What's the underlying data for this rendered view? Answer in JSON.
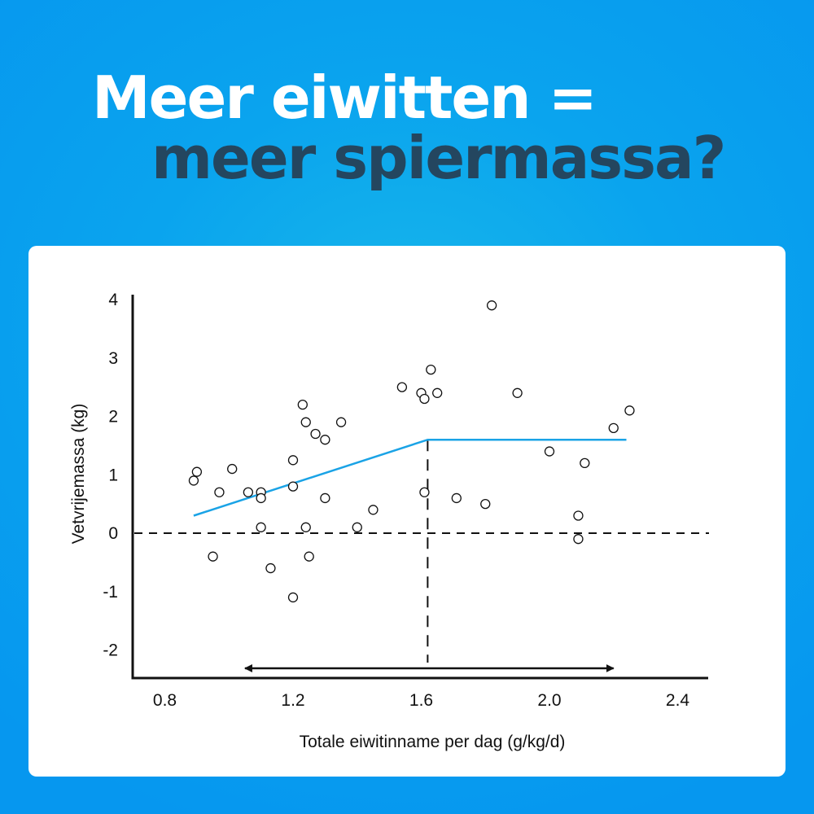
{
  "headline": {
    "line1": "Meer eiwitten =",
    "line2": "meer spiermassa?"
  },
  "colors": {
    "background": "#0697ef",
    "headline_line1": "#ffffff",
    "headline_line2": "#24465f",
    "trend_line": "#1aa3e6",
    "axes": "#111111"
  },
  "chart_data": {
    "type": "scatter",
    "xlabel": "Totale eiwitinname per dag (g/kg/d)",
    "ylabel": "Vetvrijemassa (kg)",
    "xlim": [
      0.7,
      2.5
    ],
    "ylim": [
      -2.5,
      4
    ],
    "x_ticks": [
      0.8,
      1.2,
      1.6,
      2.0,
      2.4
    ],
    "x_tick_labels": [
      "0.8",
      "1.2",
      "1.6",
      "2.0",
      "2.4"
    ],
    "y_ticks": [
      4,
      3,
      2,
      1,
      0,
      -1,
      -2
    ],
    "y_tick_labels": [
      "4",
      "3",
      "2",
      "1",
      "0",
      "-1",
      "-2"
    ],
    "grid": false,
    "points": [
      {
        "x": 0.89,
        "y": 0.9
      },
      {
        "x": 0.9,
        "y": 1.05
      },
      {
        "x": 0.95,
        "y": -0.4
      },
      {
        "x": 0.97,
        "y": 0.7
      },
      {
        "x": 1.01,
        "y": 1.1
      },
      {
        "x": 1.06,
        "y": 0.7
      },
      {
        "x": 1.1,
        "y": 0.7
      },
      {
        "x": 1.1,
        "y": 0.6
      },
      {
        "x": 1.1,
        "y": 0.1
      },
      {
        "x": 1.13,
        "y": -0.6
      },
      {
        "x": 1.2,
        "y": 1.25
      },
      {
        "x": 1.2,
        "y": 0.8
      },
      {
        "x": 1.2,
        "y": -1.1
      },
      {
        "x": 1.23,
        "y": 2.2
      },
      {
        "x": 1.24,
        "y": 1.9
      },
      {
        "x": 1.24,
        "y": 0.1
      },
      {
        "x": 1.25,
        "y": -0.4
      },
      {
        "x": 1.27,
        "y": 1.7
      },
      {
        "x": 1.3,
        "y": 1.6
      },
      {
        "x": 1.3,
        "y": 0.6
      },
      {
        "x": 1.35,
        "y": 1.9
      },
      {
        "x": 1.4,
        "y": 0.1
      },
      {
        "x": 1.45,
        "y": 0.4
      },
      {
        "x": 1.54,
        "y": 2.5
      },
      {
        "x": 1.6,
        "y": 2.4
      },
      {
        "x": 1.61,
        "y": 2.3
      },
      {
        "x": 1.61,
        "y": 0.7
      },
      {
        "x": 1.63,
        "y": 2.8
      },
      {
        "x": 1.65,
        "y": 2.4
      },
      {
        "x": 1.71,
        "y": 0.6
      },
      {
        "x": 1.8,
        "y": 0.5
      },
      {
        "x": 1.82,
        "y": 3.9
      },
      {
        "x": 1.9,
        "y": 2.4
      },
      {
        "x": 2.0,
        "y": 1.4
      },
      {
        "x": 2.09,
        "y": 0.3
      },
      {
        "x": 2.09,
        "y": -0.1
      },
      {
        "x": 2.11,
        "y": 1.2
      },
      {
        "x": 2.2,
        "y": 1.8
      },
      {
        "x": 2.25,
        "y": 2.1
      }
    ],
    "trend_line": [
      {
        "x": 0.89,
        "y": 0.3
      },
      {
        "x": 1.62,
        "y": 1.6
      },
      {
        "x": 2.24,
        "y": 1.6
      }
    ],
    "reference_lines": {
      "horizontal_y": 0,
      "vertical_x": 1.62
    },
    "range_arrow": [
      1.05,
      2.2
    ]
  }
}
